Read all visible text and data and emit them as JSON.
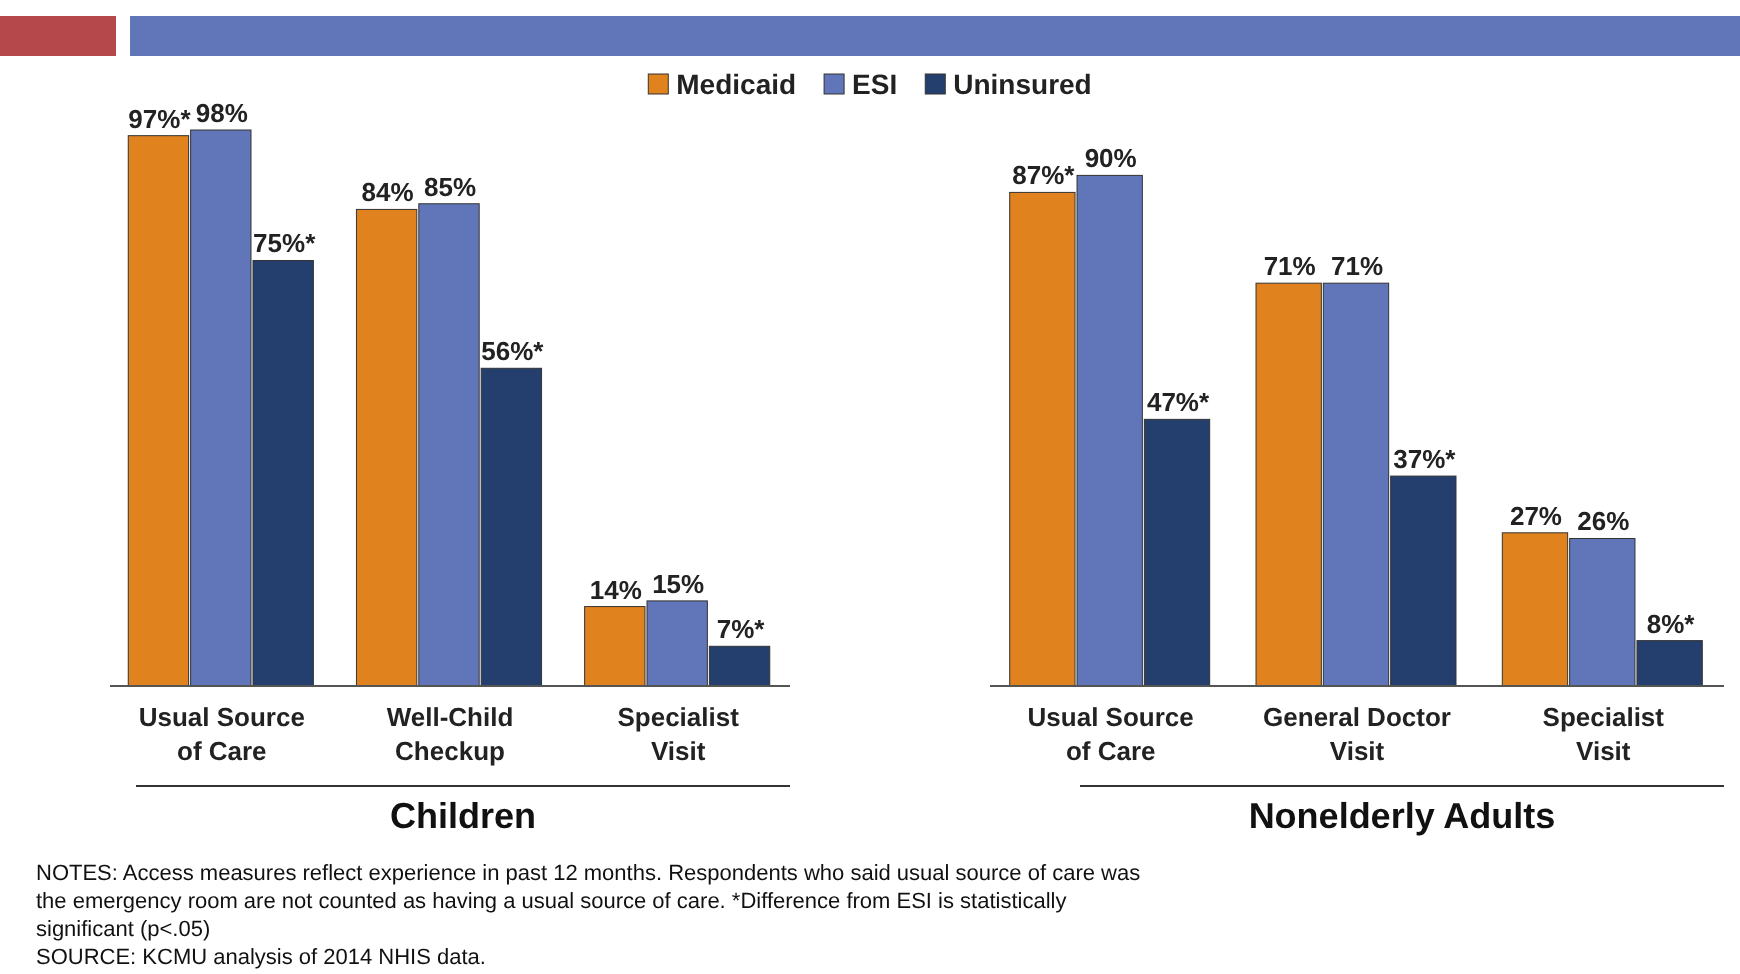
{
  "chart_data": [
    {
      "type": "bar",
      "categories": [
        "Usual Source\nof Care",
        "Well-Child\nCheckup",
        "Specialist\nVisit"
      ],
      "xlabel": "Children",
      "legend": "top",
      "series": [
        {
          "name": "Medicaid",
          "color": "#e0821e",
          "values": [
            97,
            84,
            14
          ],
          "value_labels": [
            "97%*",
            "84%",
            "14%"
          ]
        },
        {
          "name": "ESI",
          "color": "#6076b8",
          "values": [
            98,
            85,
            15
          ],
          "value_labels": [
            "98%",
            "85%",
            "15%"
          ]
        },
        {
          "name": "Uninsured",
          "color": "#243f6e",
          "values": [
            75,
            56,
            7
          ],
          "value_labels": [
            "75%*",
            "56%*",
            "7%*"
          ]
        }
      ],
      "annotations": [
        "NOTES: Access measures reflect experience in past 12 months. Respondents who said usual source of care was the emergency room are not counted as having a usual source of care. *Difference from ESI is statistically significant (p<.05)",
        "SOURCE: KCMU analysis of 2014 NHIS  data."
      ]
    },
    {
      "type": "bar",
      "categories": [
        "Usual Source\nof Care",
        "General Doctor\nVisit",
        "Specialist\nVisit"
      ],
      "xlabel": "Nonelderly Adults",
      "series": [
        {
          "color": "#e0821e",
          "values": [
            87,
            71,
            27
          ],
          "value_labels": [
            "87%*",
            "71%",
            "27%"
          ]
        },
        {
          "color": "#6076b8",
          "values": [
            90,
            71,
            26
          ],
          "value_labels": [
            "90%",
            "71%",
            "26%"
          ]
        },
        {
          "color": "#243f6e",
          "values": [
            47,
            37,
            8
          ],
          "value_labels": [
            "47%*",
            "37%*",
            "8%*"
          ]
        }
      ]
    }
  ]
}
